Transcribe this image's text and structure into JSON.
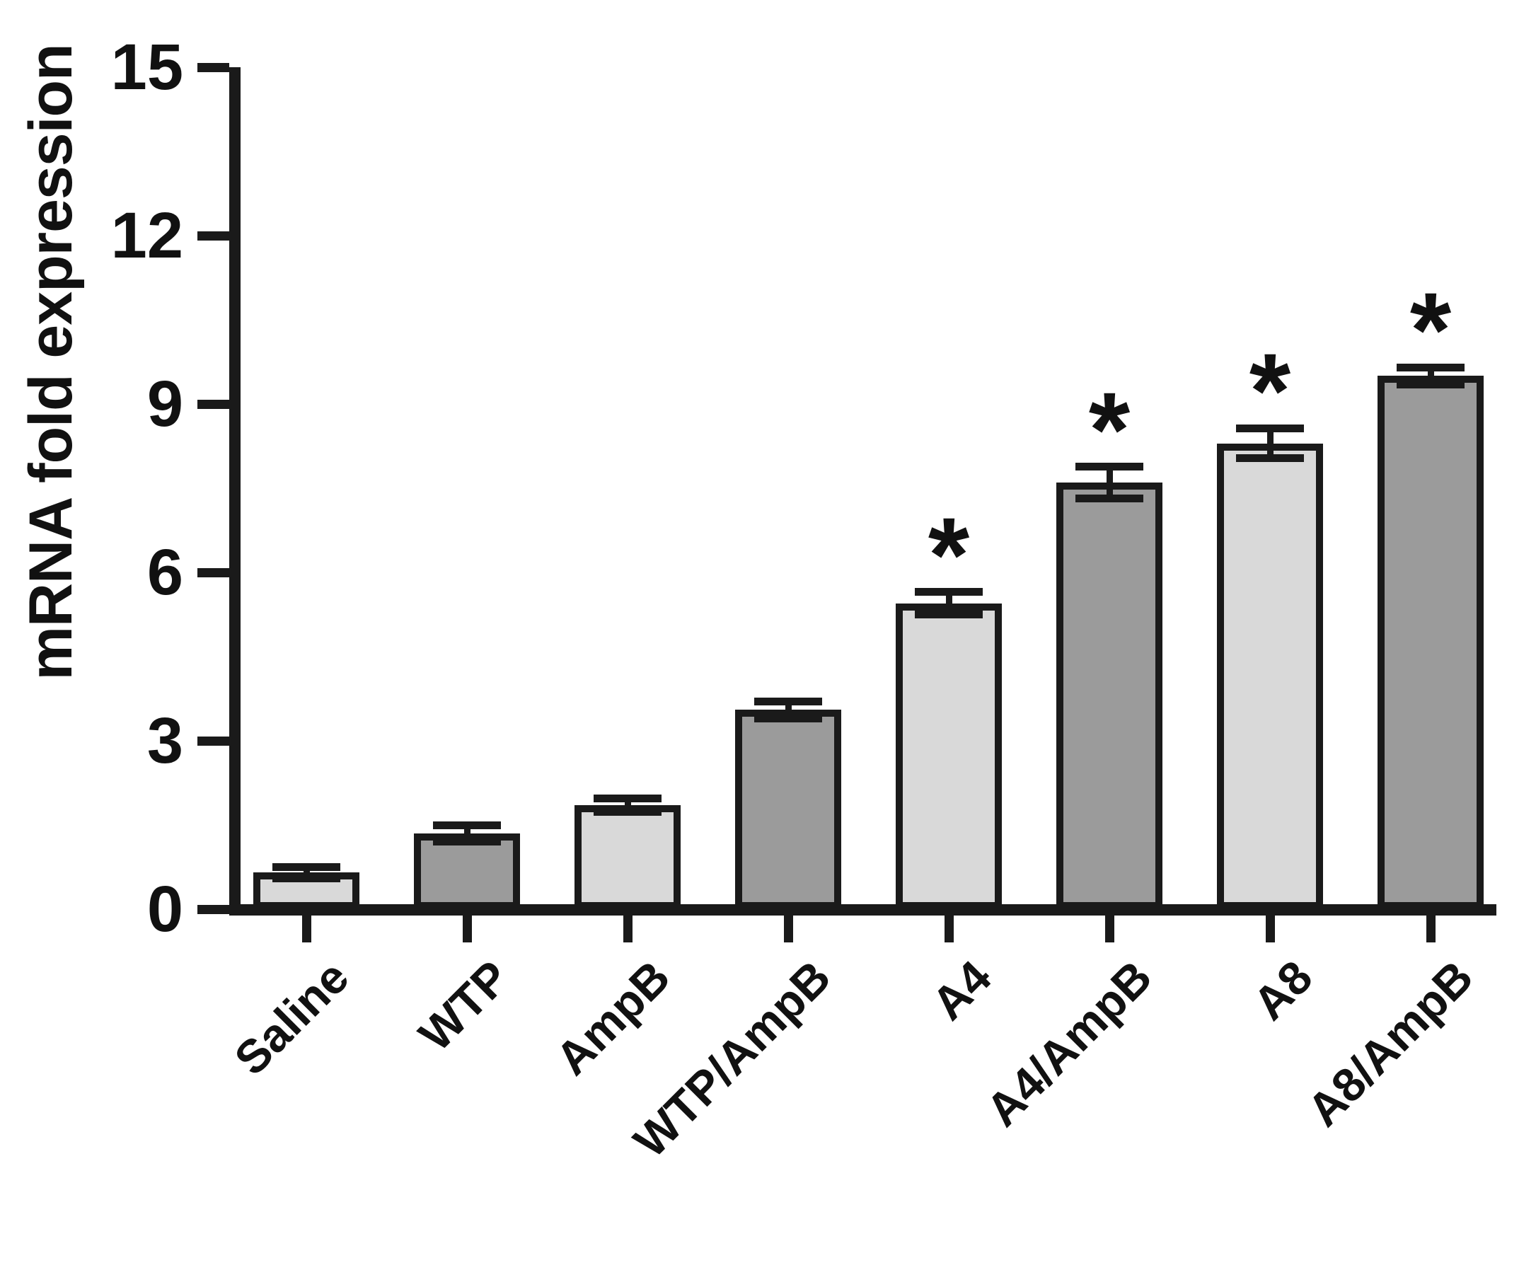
{
  "figure": {
    "background_color": "#ffffff",
    "axis_color": "#1a1a1a",
    "text_color": "#111111"
  },
  "chart_data": {
    "type": "bar",
    "title": "",
    "ylabel": "mRNA fold expression",
    "xlabel": "",
    "ylim": [
      0,
      15
    ],
    "yticks": [
      0,
      3,
      6,
      9,
      12,
      15
    ],
    "grid": false,
    "legend": null,
    "categories": [
      "Saline",
      "WTP",
      "AmpB",
      "WTP/AmpB",
      "A4",
      "A4/AmpB",
      "A8",
      "A8/AmpB"
    ],
    "values": [
      0.65,
      1.35,
      1.85,
      3.55,
      5.45,
      7.6,
      8.3,
      9.5
    ],
    "errors": [
      0.1,
      0.15,
      0.12,
      0.15,
      0.2,
      0.28,
      0.27,
      0.15
    ],
    "significance": [
      "",
      "",
      "",
      "",
      "*",
      "*",
      "*",
      "*"
    ],
    "bar_fill_colors": [
      "#d9d9d9",
      "#9b9b9b",
      "#d9d9d9",
      "#9b9b9b",
      "#d9d9d9",
      "#9b9b9b",
      "#d9d9d9",
      "#9b9b9b"
    ],
    "bar_border_color": "#1a1a1a"
  }
}
